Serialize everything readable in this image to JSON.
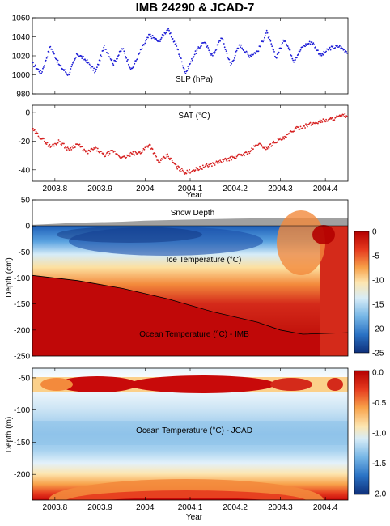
{
  "title": "IMB 24290 & JCAD-7",
  "colors": {
    "slp": "#1a1ad6",
    "sat": "#d62020",
    "snow": "#a0a0a0",
    "depth_line": "#000000"
  },
  "chart_data": [
    {
      "type": "scatter",
      "name": "slp-panel",
      "annotation": "SLP (hPa)",
      "xlim": [
        2003.75,
        2004.45
      ],
      "ylim": [
        980,
        1060
      ],
      "yticks": [
        "980",
        "1000",
        "1020",
        "1040",
        "1060"
      ],
      "x": [
        2003.75,
        2003.77,
        2003.79,
        2003.81,
        2003.83,
        2003.85,
        2003.87,
        2003.89,
        2003.91,
        2003.93,
        2003.95,
        2003.97,
        2003.99,
        2004.01,
        2004.03,
        2004.05,
        2004.07,
        2004.09,
        2004.11,
        2004.13,
        2004.15,
        2004.17,
        2004.19,
        2004.21,
        2004.23,
        2004.25,
        2004.27,
        2004.29,
        2004.31,
        2004.33,
        2004.35,
        2004.37,
        2004.39,
        2004.41,
        2004.43,
        2004.45
      ],
      "y": [
        1012,
        1002,
        1030,
        1010,
        1000,
        1022,
        1015,
        1003,
        1030,
        1012,
        1028,
        1005,
        1025,
        1042,
        1035,
        1048,
        1030,
        1002,
        1022,
        1035,
        1020,
        1040,
        1010,
        1032,
        1020,
        1025,
        1045,
        1018,
        1038,
        1015,
        1030,
        1035,
        1020,
        1028,
        1030,
        1024
      ]
    },
    {
      "type": "scatter",
      "name": "sat-panel",
      "annotation": "SAT (°C)",
      "xlim": [
        2003.75,
        2004.45
      ],
      "ylim": [
        -48,
        5
      ],
      "yticks": [
        "-40",
        "-20",
        "0"
      ],
      "xticks": [
        "2003.8",
        "2003.9",
        "2004",
        "2004.1",
        "2004.2",
        "2004.3",
        "2004.4"
      ],
      "xtick_values": [
        2003.8,
        2003.9,
        2004.0,
        2004.1,
        2004.2,
        2004.3,
        2004.4
      ],
      "xlabel": "Year",
      "x": [
        2003.75,
        2003.77,
        2003.79,
        2003.81,
        2003.83,
        2003.85,
        2003.87,
        2003.89,
        2003.91,
        2003.93,
        2003.95,
        2003.97,
        2003.99,
        2004.01,
        2004.03,
        2004.05,
        2004.07,
        2004.09,
        2004.11,
        2004.13,
        2004.15,
        2004.17,
        2004.19,
        2004.21,
        2004.23,
        2004.25,
        2004.27,
        2004.29,
        2004.31,
        2004.33,
        2004.35,
        2004.37,
        2004.39,
        2004.41,
        2004.43,
        2004.45
      ],
      "y": [
        -12,
        -18,
        -24,
        -20,
        -26,
        -22,
        -28,
        -25,
        -30,
        -27,
        -32,
        -29,
        -28,
        -22,
        -35,
        -30,
        -38,
        -42,
        -40,
        -38,
        -36,
        -34,
        -32,
        -30,
        -28,
        -22,
        -25,
        -20,
        -18,
        -12,
        -10,
        -8,
        -6,
        -5,
        -3,
        -2
      ]
    },
    {
      "type": "heatmap",
      "name": "imb-panel",
      "ylabel": "Depth (cm)",
      "ylim": [
        -250,
        50
      ],
      "yticks": [
        "50",
        "0",
        "-50",
        "-100",
        "-150",
        "-200",
        "-250"
      ],
      "annotations": [
        "Snow Depth",
        "Ice Temperature (°C)",
        "Ocean Temperature (°C) - IMB"
      ],
      "colorbar_ticks": [
        "0",
        "-5",
        "-10",
        "-15",
        "-20",
        "-25"
      ],
      "colorbar_range": [
        -25,
        0
      ],
      "ice_bottom_depth": {
        "x": [
          2003.75,
          2003.85,
          2003.95,
          2004.05,
          2004.15,
          2004.25,
          2004.3,
          2004.35,
          2004.45
        ],
        "y": [
          -95,
          -105,
          -120,
          -140,
          -165,
          -185,
          -200,
          -208,
          -205
        ]
      },
      "snow_depth": {
        "x": [
          2003.75,
          2003.8,
          2003.85,
          2003.95,
          2004.0,
          2004.1,
          2004.2,
          2004.3,
          2004.45
        ],
        "y": [
          2,
          4,
          6,
          8,
          10,
          12,
          14,
          15,
          15
        ]
      }
    },
    {
      "type": "heatmap",
      "name": "jcad-panel",
      "ylabel": "Depth (m)",
      "xlabel": "Year",
      "ylim": [
        -240,
        -35
      ],
      "yticks": [
        "-50",
        "-100",
        "-150",
        "-200"
      ],
      "xticks": [
        "2003.8",
        "2003.9",
        "2004",
        "2004.1",
        "2004.2",
        "2004.3",
        "2004.4"
      ],
      "annotations": [
        "Ocean Temperature (°C) - JCAD"
      ],
      "colorbar_ticks": [
        "0.0",
        "-0.5",
        "-1.0",
        "-1.5",
        "-2.0"
      ],
      "colorbar_range": [
        -2.0,
        0.0
      ]
    }
  ]
}
